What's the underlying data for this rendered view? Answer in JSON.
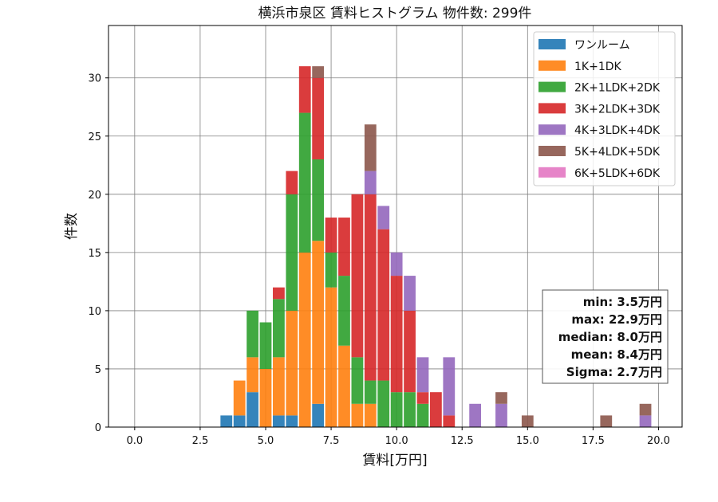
{
  "chart_data": {
    "type": "bar",
    "stacked": true,
    "title": "横浜市泉区 賃料ヒストグラム  物件数: 299件",
    "xlabel": "賃料[万円]",
    "ylabel": "件数",
    "xlim": [
      -1.0,
      20.9
    ],
    "ylim": [
      0,
      34.5
    ],
    "xticks": [
      0.0,
      2.5,
      5.0,
      7.5,
      10.0,
      12.5,
      15.0,
      17.5,
      20.0
    ],
    "xtick_labels": [
      "0.0",
      "2.5",
      "5.0",
      "7.5",
      "10.0",
      "12.5",
      "15.0",
      "17.5",
      "20.0"
    ],
    "yticks": [
      0,
      5,
      10,
      15,
      20,
      25,
      30
    ],
    "ytick_labels": [
      "0",
      "5",
      "10",
      "15",
      "20",
      "25",
      "30"
    ],
    "grid": true,
    "legend_position": "top-right",
    "bin_width": 0.5,
    "x": [
      3.5,
      4.0,
      4.5,
      5.0,
      5.5,
      6.0,
      6.5,
      7.0,
      7.5,
      8.0,
      8.5,
      9.0,
      9.5,
      10.0,
      10.5,
      11.0,
      11.5,
      12.0,
      12.5,
      13.0,
      14.0,
      15.0,
      18.0,
      19.5
    ],
    "series": [
      {
        "name": "ワンルーム",
        "color": "#1f77b4",
        "values": [
          1,
          1,
          3,
          0,
          1,
          1,
          0,
          2,
          0,
          0,
          0,
          0,
          0,
          0,
          0,
          0,
          0,
          0,
          0,
          0,
          0,
          0,
          0,
          0
        ]
      },
      {
        "name": "1K+1DK",
        "color": "#ff7f0e",
        "values": [
          0,
          3,
          3,
          5,
          5,
          9,
          15,
          14,
          12,
          7,
          2,
          2,
          0,
          0,
          0,
          0,
          0,
          0,
          0,
          0,
          0,
          0,
          0,
          0
        ]
      },
      {
        "name": "2K+1LDK+2DK",
        "color": "#2ca02c",
        "values": [
          0,
          0,
          4,
          4,
          5,
          10,
          12,
          7,
          3,
          6,
          4,
          2,
          4,
          3,
          3,
          2,
          0,
          0,
          0,
          0,
          0,
          0,
          0,
          0
        ]
      },
      {
        "name": "3K+2LDK+3DK",
        "color": "#d62728",
        "values": [
          0,
          0,
          0,
          0,
          1,
          2,
          4,
          7,
          3,
          5,
          14,
          16,
          13,
          10,
          7,
          1,
          3,
          1,
          0,
          0,
          0,
          0,
          0,
          0
        ]
      },
      {
        "name": "4K+3LDK+4DK",
        "color": "#9467bd",
        "values": [
          0,
          0,
          0,
          0,
          0,
          0,
          0,
          0,
          0,
          0,
          0,
          2,
          2,
          2,
          3,
          3,
          0,
          5,
          0,
          2,
          2,
          0,
          0,
          1
        ]
      },
      {
        "name": "5K+4LDK+5DK",
        "color": "#8c564b",
        "values": [
          0,
          0,
          0,
          0,
          0,
          0,
          0,
          1,
          0,
          0,
          0,
          4,
          0,
          0,
          0,
          0,
          0,
          0,
          0,
          0,
          1,
          1,
          1,
          1
        ]
      },
      {
        "name": "6K+5LDK+6DK",
        "color": "#e377c2",
        "values": [
          0,
          0,
          0,
          0,
          0,
          0,
          0,
          0,
          0,
          0,
          0,
          0,
          0,
          0,
          0,
          0,
          0,
          0,
          0,
          0,
          0,
          0,
          0,
          0
        ]
      }
    ],
    "stats": {
      "min": "min: 3.5万円",
      "max": "max: 22.9万円",
      "median": "median: 8.0万円",
      "mean": "mean: 8.4万円",
      "sigma": "Sigma: 2.7万円"
    }
  }
}
